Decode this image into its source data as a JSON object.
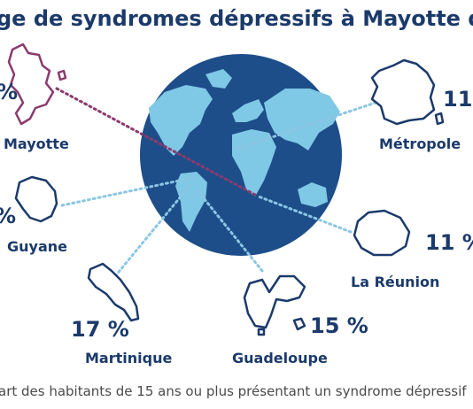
{
  "title": "ge de syndromes dépressifs à Mayotte qu'ailleurs en",
  "caption": "art des habitants de 15 ans ou plus présentant un syndrome dépressif",
  "colors": {
    "navy": "#1b3a6b",
    "globe_ocean": "#1d4e89",
    "globe_land": "#7fc8e6",
    "mayotte": "#8b3a6e",
    "connector": "#8cc6e4"
  },
  "chart_data": {
    "type": "map-infographic",
    "unit": "%",
    "regions": [
      {
        "name": "Mayotte",
        "value": null,
        "value_label": "%"
      },
      {
        "name": "Métropole",
        "value": 11,
        "value_label": "11 %"
      },
      {
        "name": "Guyane",
        "value": null,
        "value_label": "%"
      },
      {
        "name": "La Réunion",
        "value": 11,
        "value_label": "11 %"
      },
      {
        "name": "Martinique",
        "value": 17,
        "value_label": "17 %"
      },
      {
        "name": "Guadeloupe",
        "value": 15,
        "value_label": "15 %"
      }
    ]
  }
}
